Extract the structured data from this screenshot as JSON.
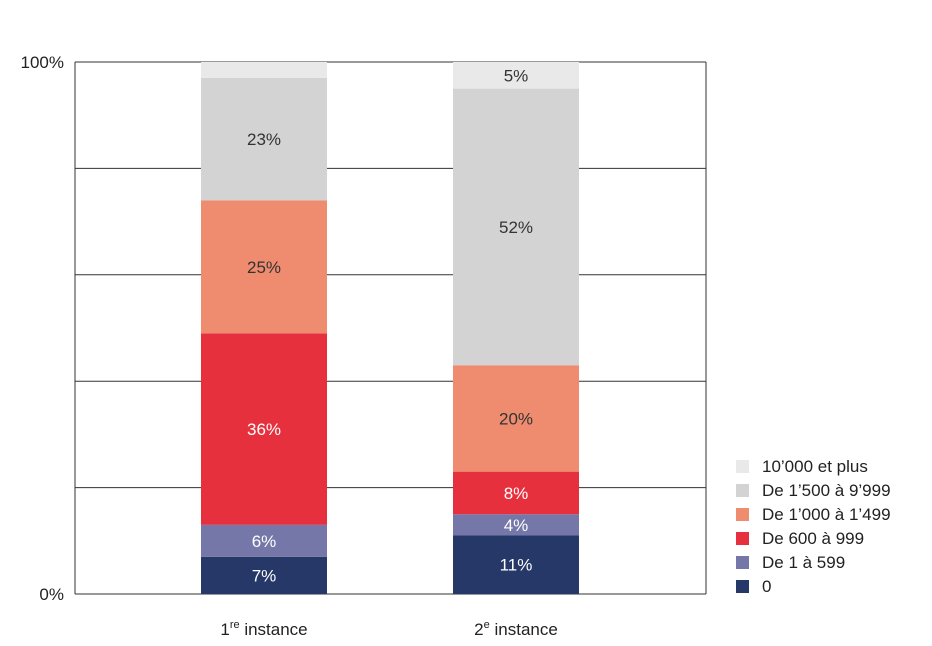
{
  "chart_data": {
    "type": "bar",
    "stacked": true,
    "title": "",
    "xlabel": "",
    "ylabel": "",
    "ylim": [
      0,
      100
    ],
    "ytick_labels": [
      "0%",
      "100%"
    ],
    "categories": [
      {
        "main": "1",
        "sup": "re",
        "rest": " instance"
      },
      {
        "main": "2",
        "sup": "e",
        "rest": " instance"
      }
    ],
    "series": [
      {
        "name": "0",
        "color": "#253868",
        "label_color": "#ffffff",
        "values": [
          7,
          11
        ],
        "labels": [
          "7%",
          "11%"
        ]
      },
      {
        "name": "De 1 à 599",
        "color": "#7477a7",
        "label_color": "#ffffff",
        "values": [
          6,
          4
        ],
        "labels": [
          "6%",
          "4%"
        ]
      },
      {
        "name": "De 600 à 999",
        "color": "#e6303d",
        "label_color": "#ffffff",
        "values": [
          36,
          8
        ],
        "labels": [
          "36%",
          "8%"
        ]
      },
      {
        "name": "De 1’000 à 1’499",
        "color": "#ef8b6f",
        "label_color": "#333333",
        "values": [
          25,
          20
        ],
        "labels": [
          "25%",
          "20%"
        ]
      },
      {
        "name": "De 1’500 à 9’999",
        "color": "#d3d3d3",
        "label_color": "#333333",
        "values": [
          23,
          52
        ],
        "labels": [
          "23%",
          "52%"
        ]
      },
      {
        "name": "10’000 et plus",
        "color": "#e9e9e9",
        "label_color": "#333333",
        "values": [
          3,
          5
        ],
        "labels": [
          "",
          "5%"
        ]
      }
    ],
    "grid": true,
    "legend_position": "bottom-right"
  }
}
